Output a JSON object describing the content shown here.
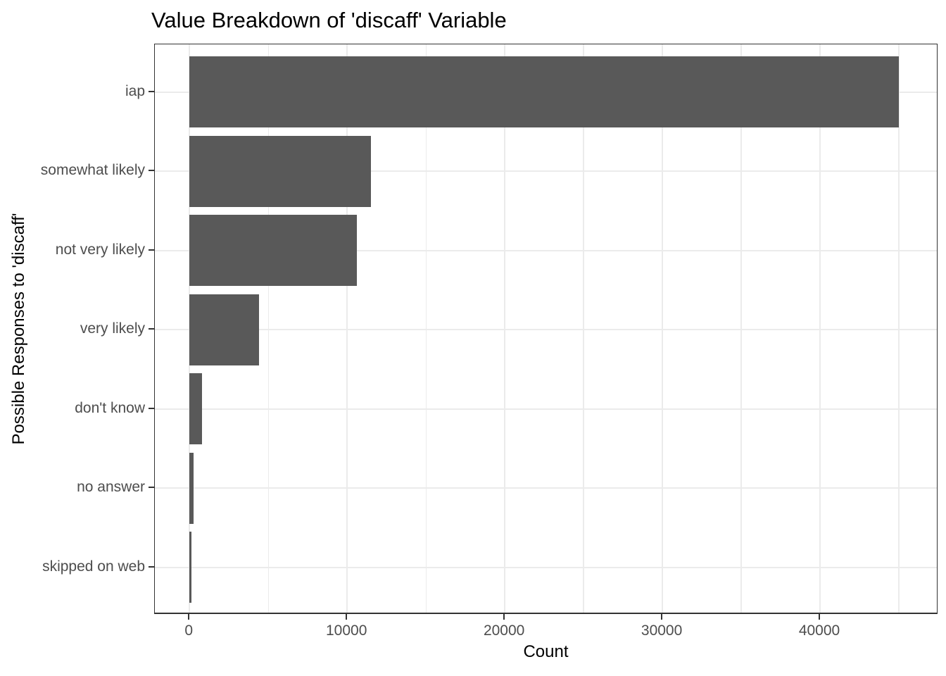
{
  "chart_data": {
    "type": "bar",
    "orientation": "horizontal",
    "title": "Value Breakdown of 'discaff' Variable",
    "xlabel": "Count",
    "ylabel": "Possible Responses to 'discaff'",
    "categories": [
      "iap",
      "somewhat likely",
      "not very likely",
      "very likely",
      "don't know",
      "no answer",
      "skipped on web"
    ],
    "values": [
      45000,
      11500,
      10600,
      4400,
      800,
      250,
      120
    ],
    "xlim": [
      -2200,
      47500
    ],
    "x_major_ticks": [
      0,
      10000,
      20000,
      30000,
      40000
    ],
    "x_major_tick_labels": [
      "0",
      "10000",
      "20000",
      "30000",
      "40000"
    ],
    "x_minor_ticks": [
      5000,
      15000,
      25000,
      35000,
      45000
    ],
    "grid": "on",
    "legend": "none",
    "colors": {
      "bar_fill": "#595959",
      "gridline": "#ebebeb",
      "panel_border": "#333333",
      "tick_mark": "#333333",
      "tick_label": "#4d4d4d",
      "title_text": "#000000",
      "axis_title_text": "#000000",
      "background": "#ffffff"
    }
  }
}
